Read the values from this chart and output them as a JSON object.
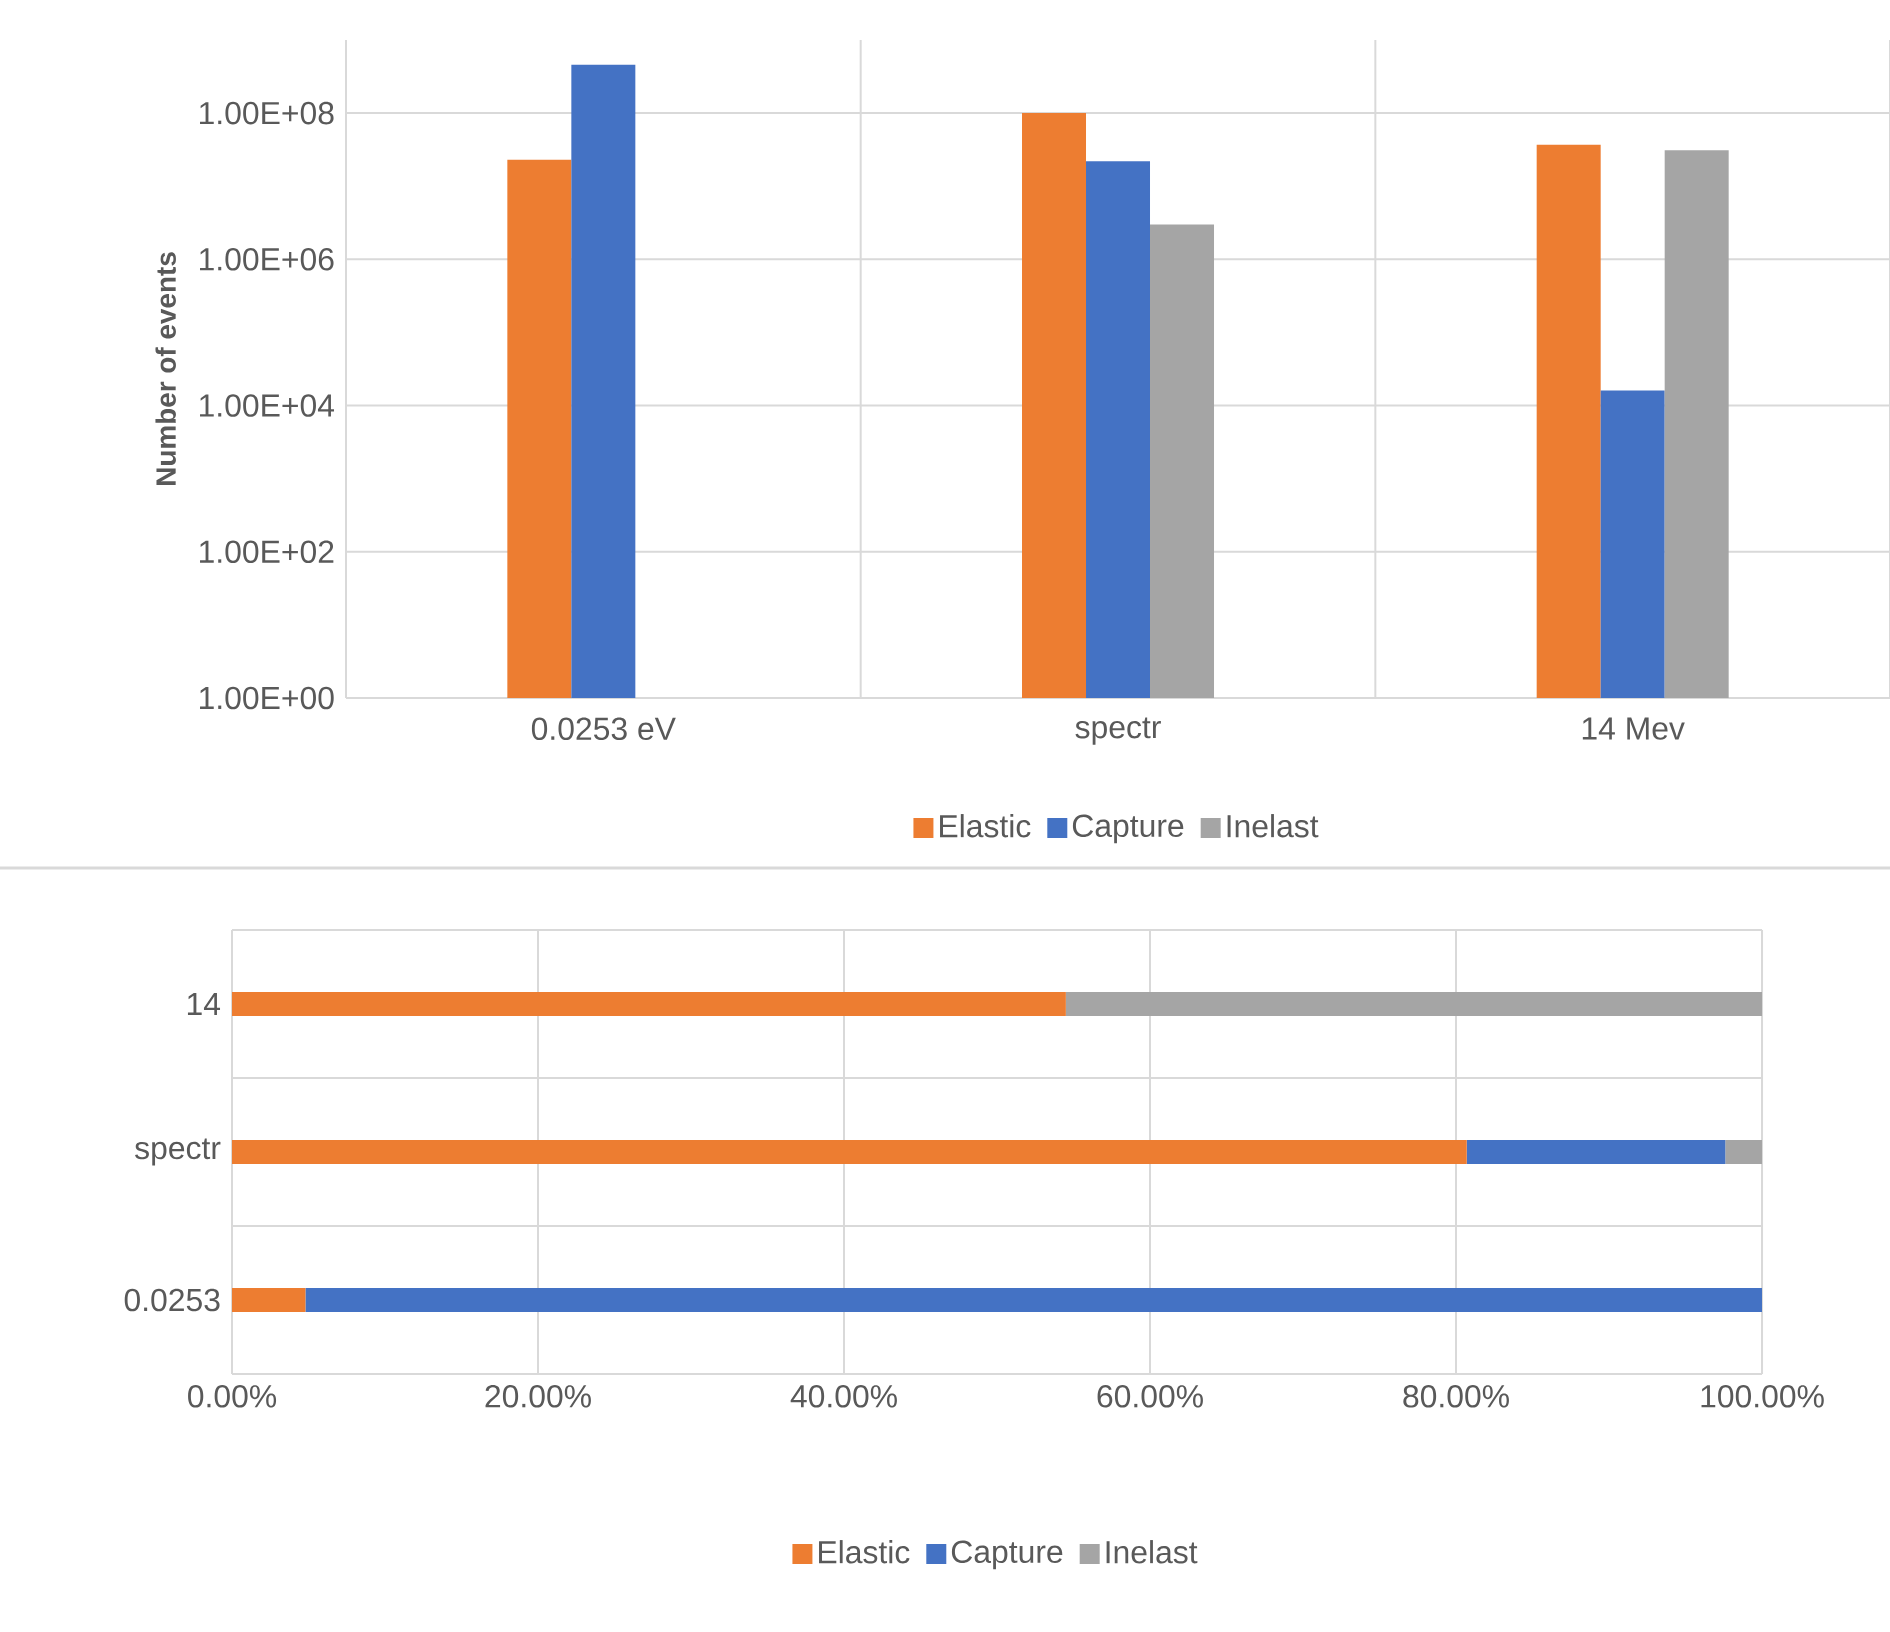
{
  "chart_data": [
    {
      "type": "bar",
      "ylabel": "Number of events",
      "categories": [
        "0.0253 eV",
        "spectr",
        "14 Mev"
      ],
      "log": "y",
      "ylim": [
        1,
        1000000000
      ],
      "yticks": [
        {
          "value": 1,
          "label": "1.00E+00"
        },
        {
          "value": 100,
          "label": "1.00E+02"
        },
        {
          "value": 10000,
          "label": "1.00E+04"
        },
        {
          "value": 1000000,
          "label": "1.00E+06"
        },
        {
          "value": 100000000,
          "label": "1.00E+08"
        }
      ],
      "series": [
        {
          "name": "Elastic",
          "color": "#ed7d31",
          "values": [
            23000000,
            100000000,
            37000000
          ]
        },
        {
          "name": "Capture",
          "color": "#4472c4",
          "values": [
            460000000,
            22000000,
            16000
          ]
        },
        {
          "name": "Inelast",
          "color": "#a5a5a5",
          "values": [
            null,
            3000000,
            31000000
          ]
        }
      ],
      "grid": true,
      "legend": "bottom"
    },
    {
      "type": "bar",
      "orientation": "horizontal",
      "stacked": true,
      "categories": [
        "14",
        "spectr",
        "0.0253"
      ],
      "xlim": [
        0,
        100
      ],
      "xticks": [
        {
          "value": 0,
          "label": "0.00%"
        },
        {
          "value": 20,
          "label": "20.00%"
        },
        {
          "value": 40,
          "label": "40.00%"
        },
        {
          "value": 60,
          "label": "60.00%"
        },
        {
          "value": 80,
          "label": "80.00%"
        },
        {
          "value": 100,
          "label": "100.00%"
        }
      ],
      "series": [
        {
          "name": "Elastic",
          "color": "#ed7d31",
          "values": [
            54.5,
            80.7,
            4.8
          ]
        },
        {
          "name": "Capture",
          "color": "#4472c4",
          "values": [
            0,
            16.9,
            95.2
          ]
        },
        {
          "name": "Inelast",
          "color": "#a5a5a5",
          "values": [
            45.5,
            2.4,
            0
          ]
        }
      ],
      "grid": true,
      "legend": "bottom"
    }
  ]
}
